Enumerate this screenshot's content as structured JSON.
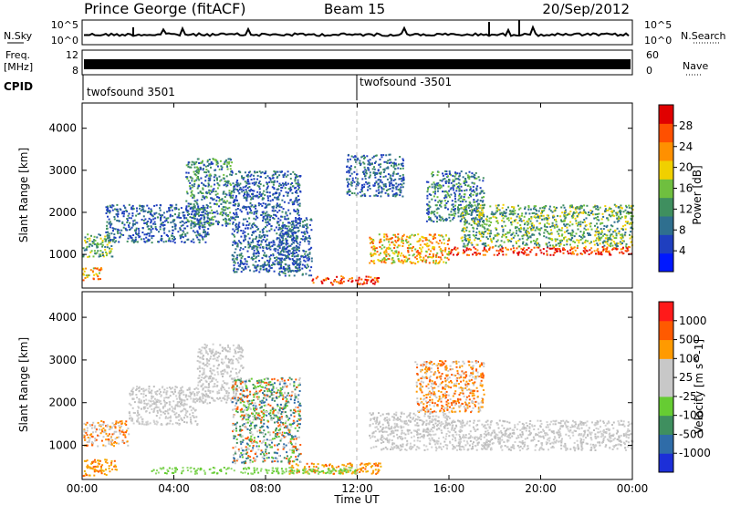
{
  "header": {
    "title": "Prince George (fitACF)",
    "beam": "Beam 15",
    "date": "20/Sep/2012"
  },
  "strips": {
    "nsky_label": "N.Sky",
    "nsearch_label": "N.Search",
    "noise_ticks": [
      "10^5",
      "10^0"
    ],
    "freq_label_1": "Freq.",
    "freq_label_2": "[MHz]",
    "freq_ticks": [
      "12",
      "8"
    ],
    "nave_label": "Nave",
    "nave_ticks": [
      "60",
      "0"
    ],
    "cpid_label": "CPID",
    "cpid_segments": [
      {
        "label": "twofsound 3501",
        "start_hour": 0
      },
      {
        "label": "twofsound -3501",
        "start_hour": 12
      }
    ]
  },
  "chart_data": [
    {
      "type": "heatmap",
      "name": "power",
      "ylabel": "Slant Range [km]",
      "yticks": [
        1000,
        2000,
        3000,
        4000
      ],
      "ylim": [
        200,
        4600
      ],
      "xlim": [
        0,
        24
      ],
      "colorbar": {
        "label": "Power [dB]",
        "ticks": [
          "28",
          "24",
          "20",
          "16",
          "12",
          "8",
          "4"
        ],
        "colors": [
          "#0018ff",
          "#1f3fbf",
          "#2f6f8f",
          "#3f8f5f",
          "#6fbf3f",
          "#f0d000",
          "#ff9000",
          "#ff5000",
          "#e00000"
        ]
      },
      "features": [
        {
          "t0": 0.0,
          "t1": 1.3,
          "r0": 950,
          "r1": 1500,
          "level": "mid"
        },
        {
          "t0": 0.0,
          "t1": 0.9,
          "r0": 400,
          "r1": 700,
          "level": "mid-high"
        },
        {
          "t0": 1.0,
          "t1": 5.5,
          "r0": 1300,
          "r1": 2200,
          "level": "low"
        },
        {
          "t0": 4.5,
          "t1": 6.5,
          "r0": 1700,
          "r1": 3300,
          "level": "low-mid"
        },
        {
          "t0": 6.5,
          "t1": 9.5,
          "r0": 600,
          "r1": 3000,
          "level": "low"
        },
        {
          "t0": 8.5,
          "t1": 10.0,
          "r0": 500,
          "r1": 1900,
          "level": "low"
        },
        {
          "t0": 10.0,
          "t1": 13.0,
          "r0": 300,
          "r1": 500,
          "level": "high"
        },
        {
          "t0": 11.5,
          "t1": 14.0,
          "r0": 2400,
          "r1": 3400,
          "level": "low"
        },
        {
          "t0": 12.5,
          "t1": 16.0,
          "r0": 800,
          "r1": 1500,
          "level": "mid-high"
        },
        {
          "t0": 15.0,
          "t1": 17.5,
          "r0": 1800,
          "r1": 3000,
          "level": "low-mid"
        },
        {
          "t0": 16.0,
          "t1": 24.0,
          "r0": 1000,
          "r1": 1200,
          "level": "high"
        },
        {
          "t0": 16.5,
          "t1": 24.0,
          "r0": 1200,
          "r1": 2200,
          "level": "mid"
        }
      ]
    },
    {
      "type": "heatmap",
      "name": "velocity",
      "ylabel": "Slant Range [km]",
      "yticks": [
        1000,
        2000,
        3000,
        4000
      ],
      "ylim": [
        200,
        4600
      ],
      "xlim": [
        0,
        24
      ],
      "xticks": [
        "00:00",
        "04:00",
        "08:00",
        "12:00",
        "16:00",
        "20:00",
        "00:00"
      ],
      "xlabel": "Time UT",
      "colorbar": {
        "label": "Velocity [m s^-1]",
        "ticks": [
          "1000",
          "500",
          "100",
          "25",
          "-25",
          "-100",
          "-500",
          "-1000"
        ],
        "colors": [
          "#1c2fd8",
          "#2f6ca8",
          "#3f8f5f",
          "#66cc33",
          "#c8c8c8",
          "#c8c8c8",
          "#ff9a00",
          "#ff5a00",
          "#ff1a1a"
        ]
      },
      "features": [
        {
          "t0": 0.0,
          "t1": 2.0,
          "r0": 1000,
          "r1": 1600,
          "level": "gray-orange"
        },
        {
          "t0": 0.0,
          "t1": 1.5,
          "r0": 300,
          "r1": 700,
          "level": "orange"
        },
        {
          "t0": 2.0,
          "t1": 5.0,
          "r0": 1500,
          "r1": 2400,
          "level": "gray"
        },
        {
          "t0": 5.0,
          "t1": 7.0,
          "r0": 2000,
          "r1": 3400,
          "level": "gray"
        },
        {
          "t0": 6.5,
          "t1": 9.5,
          "r0": 600,
          "r1": 2600,
          "level": "green-orange"
        },
        {
          "t0": 9.0,
          "t1": 13.0,
          "r0": 350,
          "r1": 600,
          "level": "orange"
        },
        {
          "t0": 3.0,
          "t1": 12.0,
          "r0": 350,
          "r1": 500,
          "level": "green"
        },
        {
          "t0": 12.5,
          "t1": 16.0,
          "r0": 900,
          "r1": 1800,
          "level": "gray"
        },
        {
          "t0": 16.0,
          "t1": 24.0,
          "r0": 900,
          "r1": 1600,
          "level": "gray"
        },
        {
          "t0": 14.5,
          "t1": 17.5,
          "r0": 1800,
          "r1": 3000,
          "level": "orange-gray"
        }
      ]
    }
  ]
}
